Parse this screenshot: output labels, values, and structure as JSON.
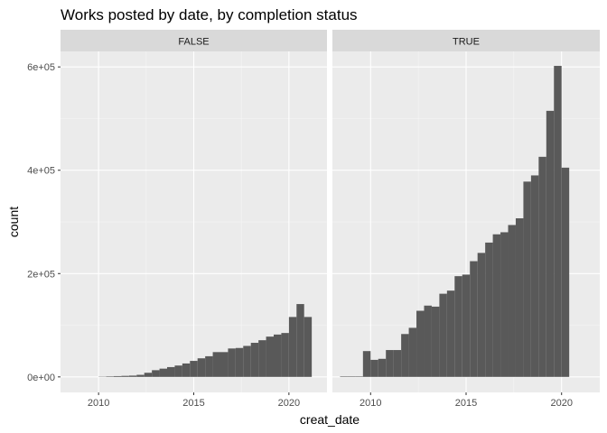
{
  "chart_data": {
    "type": "bar",
    "subtype": "faceted-histogram",
    "title": "Works posted by date, by completion status",
    "xlabel": "creat_date",
    "ylabel": "count",
    "xlim": [
      2008.0,
      2022.0
    ],
    "ylim": [
      -30000,
      630000
    ],
    "x_ticks": [
      2010,
      2015,
      2020
    ],
    "x_tick_labels": [
      "2010",
      "2015",
      "2020"
    ],
    "y_ticks": [
      0,
      200000,
      400000,
      600000
    ],
    "y_tick_labels": [
      "0e+00",
      "2e+05",
      "4e+05",
      "6e+05"
    ],
    "grid": true,
    "colors": {
      "panel": "#ebebeb",
      "strip": "#d9d9d9",
      "bar": "#595959",
      "grid": "#ffffff"
    },
    "bin_starts": [
      2008.4,
      2008.8,
      2009.2,
      2009.6,
      2010.0,
      2010.4,
      2010.8,
      2011.2,
      2011.6,
      2012.0,
      2012.4,
      2012.8,
      2013.2,
      2013.6,
      2014.0,
      2014.4,
      2014.8,
      2015.2,
      2015.6,
      2016.0,
      2016.4,
      2016.8,
      2017.2,
      2017.6,
      2018.0,
      2018.4,
      2018.8,
      2019.2,
      2019.6,
      2020.0,
      2020.4,
      2020.8,
      2021.2
    ],
    "bin_width": 0.4,
    "panels": [
      {
        "strip": "FALSE",
        "values": [
          0,
          0,
          0,
          0,
          500,
          1000,
          1500,
          2000,
          2500,
          4000,
          8000,
          13000,
          16000,
          19000,
          22000,
          26000,
          31000,
          36000,
          40000,
          48000,
          48000,
          55000,
          56000,
          60000,
          66000,
          71000,
          78000,
          82000,
          85000,
          116000,
          141000,
          116000,
          0
        ]
      },
      {
        "strip": "TRUE",
        "values": [
          1000,
          1000,
          1000,
          50000,
          33000,
          35000,
          52000,
          52000,
          83000,
          95000,
          128000,
          138000,
          136000,
          161000,
          167000,
          195000,
          198000,
          224000,
          240000,
          260000,
          276000,
          280000,
          294000,
          307000,
          378000,
          390000,
          426000,
          515000,
          602000,
          405000,
          0,
          0,
          0
        ]
      }
    ]
  }
}
